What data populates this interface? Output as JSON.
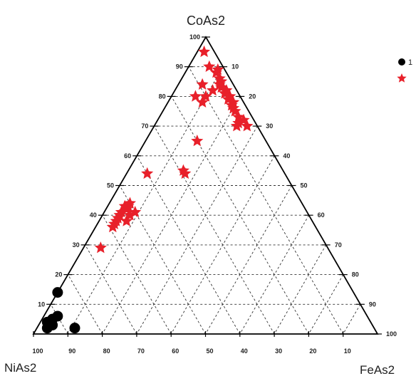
{
  "chart_data": {
    "type": "scatter",
    "subtype": "ternary",
    "title": "",
    "vertices": {
      "top": "CoAs2",
      "left": "NiAs2",
      "right": "FeAs2"
    },
    "ticks": {
      "top": [
        "100",
        "90",
        "80",
        "70",
        "60",
        "50",
        "40",
        "30",
        "20",
        "10"
      ],
      "bottom": [
        "100",
        "90",
        "80",
        "70",
        "60",
        "50",
        "40",
        "30",
        "20",
        "10"
      ],
      "right": [
        "10",
        "20",
        "30",
        "40",
        "50",
        "60",
        "70",
        "80",
        "90",
        "100"
      ]
    },
    "grid": true,
    "grid_style": "dashed",
    "legend": {
      "placement": "top-right",
      "entries": [
        {
          "marker": "circle",
          "color": "#000000",
          "label": "1"
        },
        {
          "marker": "star",
          "color": "#e8202a",
          "label": ""
        }
      ]
    },
    "series": [
      {
        "marker": "circle",
        "color": "#000000",
        "points": [
          {
            "CoAs2": 14,
            "NiAs2": 86,
            "FeAs2": 0
          },
          {
            "CoAs2": 6,
            "NiAs2": 90,
            "FeAs2": 4
          },
          {
            "CoAs2": 5,
            "NiAs2": 92,
            "FeAs2": 3
          },
          {
            "CoAs2": 4,
            "NiAs2": 94,
            "FeAs2": 2
          },
          {
            "CoAs2": 2,
            "NiAs2": 95,
            "FeAs2": 3
          },
          {
            "CoAs2": 3,
            "NiAs2": 93,
            "FeAs2": 4
          },
          {
            "CoAs2": 2,
            "NiAs2": 87,
            "FeAs2": 11
          }
        ]
      },
      {
        "marker": "star",
        "color": "#e8202a",
        "points": [
          {
            "CoAs2": 95,
            "NiAs2": 3,
            "FeAs2": 2
          },
          {
            "CoAs2": 90,
            "NiAs2": 4,
            "FeAs2": 6
          },
          {
            "CoAs2": 89,
            "NiAs2": 2,
            "FeAs2": 9
          },
          {
            "CoAs2": 88,
            "NiAs2": 3,
            "FeAs2": 9
          },
          {
            "CoAs2": 86,
            "NiAs2": 3,
            "FeAs2": 11
          },
          {
            "CoAs2": 85,
            "NiAs2": 3,
            "FeAs2": 12
          },
          {
            "CoAs2": 84,
            "NiAs2": 4,
            "FeAs2": 12
          },
          {
            "CoAs2": 83,
            "NiAs2": 4,
            "FeAs2": 13
          },
          {
            "CoAs2": 82,
            "NiAs2": 3,
            "FeAs2": 15
          },
          {
            "CoAs2": 81,
            "NiAs2": 4,
            "FeAs2": 15
          },
          {
            "CoAs2": 80,
            "NiAs2": 3,
            "FeAs2": 17
          },
          {
            "CoAs2": 79,
            "NiAs2": 4,
            "FeAs2": 17
          },
          {
            "CoAs2": 78,
            "NiAs2": 3,
            "FeAs2": 19
          },
          {
            "CoAs2": 77,
            "NiAs2": 4,
            "FeAs2": 19
          },
          {
            "CoAs2": 76,
            "NiAs2": 4,
            "FeAs2": 20
          },
          {
            "CoAs2": 75,
            "NiAs2": 4,
            "FeAs2": 21
          },
          {
            "CoAs2": 73,
            "NiAs2": 4,
            "FeAs2": 23
          },
          {
            "CoAs2": 72,
            "NiAs2": 3,
            "FeAs2": 25
          },
          {
            "CoAs2": 71,
            "NiAs2": 5,
            "FeAs2": 24
          },
          {
            "CoAs2": 70,
            "NiAs2": 6,
            "FeAs2": 24
          },
          {
            "CoAs2": 70,
            "NiAs2": 3,
            "FeAs2": 27
          },
          {
            "CoAs2": 82,
            "NiAs2": 7,
            "FeAs2": 11
          },
          {
            "CoAs2": 84,
            "NiAs2": 9,
            "FeAs2": 7
          },
          {
            "CoAs2": 80,
            "NiAs2": 13,
            "FeAs2": 7
          },
          {
            "CoAs2": 80,
            "NiAs2": 10,
            "FeAs2": 10
          },
          {
            "CoAs2": 78,
            "NiAs2": 12,
            "FeAs2": 10
          },
          {
            "CoAs2": 65,
            "NiAs2": 20,
            "FeAs2": 15
          },
          {
            "CoAs2": 54,
            "NiAs2": 29,
            "FeAs2": 17
          },
          {
            "CoAs2": 54,
            "NiAs2": 40,
            "FeAs2": 6
          },
          {
            "CoAs2": 55,
            "NiAs2": 29,
            "FeAs2": 16
          },
          {
            "CoAs2": 44,
            "NiAs2": 50,
            "FeAs2": 6
          },
          {
            "CoAs2": 43,
            "NiAs2": 51,
            "FeAs2": 6
          },
          {
            "CoAs2": 43,
            "NiAs2": 52,
            "FeAs2": 5
          },
          {
            "CoAs2": 42,
            "NiAs2": 52,
            "FeAs2": 6
          },
          {
            "CoAs2": 41,
            "NiAs2": 54,
            "FeAs2": 5
          },
          {
            "CoAs2": 41,
            "NiAs2": 50,
            "FeAs2": 9
          },
          {
            "CoAs2": 40,
            "NiAs2": 55,
            "FeAs2": 5
          },
          {
            "CoAs2": 39,
            "NiAs2": 56,
            "FeAs2": 5
          },
          {
            "CoAs2": 38,
            "NiAs2": 57,
            "FeAs2": 5
          },
          {
            "CoAs2": 37,
            "NiAs2": 58,
            "FeAs2": 5
          },
          {
            "CoAs2": 36,
            "NiAs2": 59,
            "FeAs2": 5
          },
          {
            "CoAs2": 40,
            "NiAs2": 52,
            "FeAs2": 8
          },
          {
            "CoAs2": 38,
            "NiAs2": 54,
            "FeAs2": 8
          },
          {
            "CoAs2": 29,
            "NiAs2": 66,
            "FeAs2": 5
          }
        ]
      }
    ]
  }
}
